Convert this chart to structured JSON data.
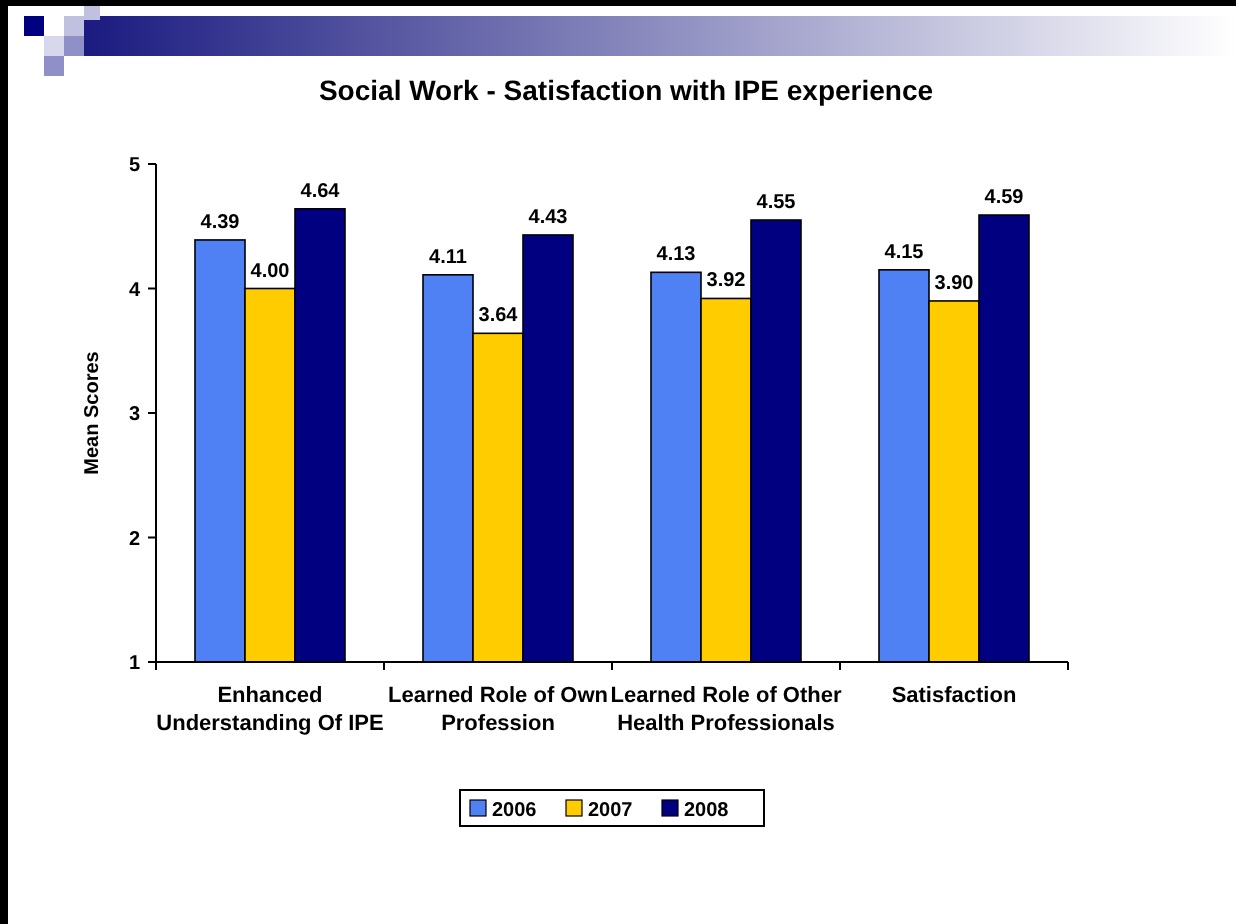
{
  "chart_data": {
    "type": "bar",
    "title": "Social Work - Satisfaction with IPE experience",
    "ylabel": "Mean Scores",
    "categories": [
      "Enhanced Understanding Of IPE",
      "Learned Role of Own Profession",
      "Learned Role of Other Health Professionals",
      "Satisfaction"
    ],
    "series": [
      {
        "name": "2006",
        "color": "#4f81f5",
        "values": [
          4.39,
          4.11,
          4.13,
          4.15
        ]
      },
      {
        "name": "2007",
        "color": "#ffcc00",
        "values": [
          4.0,
          3.64,
          3.92,
          3.9
        ]
      },
      {
        "name": "2008",
        "color": "#000080",
        "values": [
          4.64,
          4.43,
          4.55,
          4.59
        ]
      }
    ],
    "value_labels": [
      [
        "4.39",
        "4.11",
        "4.13",
        "4.15"
      ],
      [
        "4.00",
        "3.64",
        "3.92",
        "3.90"
      ],
      [
        "4.64",
        "4.43",
        "4.55",
        "4.59"
      ]
    ],
    "ylim": [
      1,
      5
    ],
    "yticks": [
      1,
      2,
      3,
      4,
      5
    ],
    "grid": false,
    "legend": "bottom"
  }
}
